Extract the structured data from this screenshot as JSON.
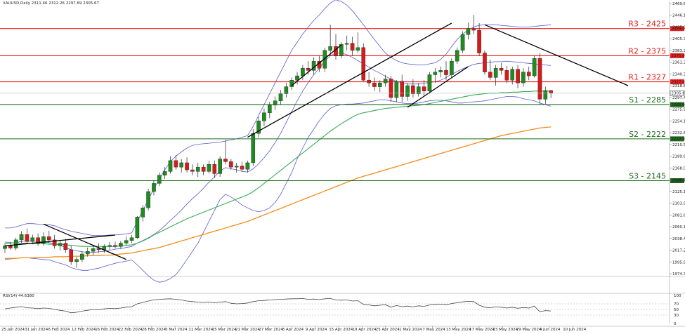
{
  "chart_data": {
    "type": "candlestick",
    "header": "XAUUSD,Daily  2311.46 2312.26 2297.69 2305.67",
    "symbol": "XAUUSD",
    "timeframe": "Daily",
    "ohlc_header": {
      "open": 2311.46,
      "high": 2312.26,
      "low": 2297.69,
      "close": 2305.67
    },
    "current_price_label": "2305.67",
    "price_ticks": [
      "2469.65",
      "2446.10",
      "2425.00",
      "2405.35",
      "2383.20",
      "2361.35",
      "2340.35",
      "2318.85",
      "2297.40",
      "2275.95",
      "2254.15",
      "2232.60",
      "2210.55",
      "2189.60",
      "2168.00",
      "2146.65",
      "2125.15",
      "2103.90",
      "2081.60",
      "2060.15",
      "2038.40",
      "2017.25",
      "1995.80",
      "1974.35"
    ],
    "date_ticks": [
      "25 Jan 2024",
      "31 Jan 2024",
      "6 Feb 2024",
      "12 Feb 2024",
      "16 Feb 2024",
      "22 Feb 2024",
      "28 Feb 2024",
      "5 Mar 2024",
      "11 Mar 2024",
      "15 Mar 2024",
      "21 Mar 2024",
      "27 Mar 2024",
      "3 Apr 2024",
      "9 Apr 2024",
      "15 Apr 2024",
      "19 Apr 2024",
      "25 Apr 2024",
      "1 May 2024",
      "7 May 2024",
      "13 May 2024",
      "17 May 2024",
      "23 May 2024",
      "29 May 2024",
      "4 Jun 2024",
      "10 Jun 2024"
    ],
    "levels": [
      {
        "label": "R3 - 2425",
        "axis_label": "2425.00",
        "value": 2425,
        "kind": "resistance"
      },
      {
        "label": "R2 - 2375",
        "axis_label": "2375.00",
        "value": 2375,
        "kind": "resistance"
      },
      {
        "label": "R1 - 2327",
        "axis_label": "2327.00",
        "value": 2327,
        "kind": "resistance"
      },
      {
        "label": "S1 - 2285",
        "axis_label": "2285.00",
        "value": 2285,
        "kind": "support"
      },
      {
        "label": "S2 - 2222",
        "axis_label": "2222.00",
        "value": 2222,
        "kind": "support"
      },
      {
        "label": "S3 - 2145",
        "axis_label": "2145.00",
        "value": 2145,
        "kind": "support"
      }
    ],
    "colors": {
      "resistance": "#e8211f",
      "support": "#1d6b1d",
      "bull_candle": "#1e8c1e",
      "bear_candle": "#d91a1a",
      "bollinger": "#5a5ad0",
      "ma_50": "#3aaa55",
      "ma_200": "#f28c1a",
      "rsi": "#444444",
      "trendline": "#000000"
    },
    "ohlc": [
      [
        2020,
        2030,
        2012,
        2025
      ],
      [
        2025,
        2032,
        2018,
        2021
      ],
      [
        2021,
        2040,
        2017,
        2036
      ],
      [
        2036,
        2052,
        2030,
        2046
      ],
      [
        2046,
        2057,
        2030,
        2033
      ],
      [
        2033,
        2046,
        2028,
        2040
      ],
      [
        2040,
        2048,
        2025,
        2030
      ],
      [
        2030,
        2050,
        2025,
        2042
      ],
      [
        2042,
        2053,
        2030,
        2036
      ],
      [
        2036,
        2045,
        2020,
        2025
      ],
      [
        2025,
        2034,
        2016,
        2030
      ],
      [
        2030,
        2038,
        2012,
        2018
      ],
      [
        2018,
        2025,
        1990,
        1996
      ],
      [
        1996,
        2005,
        1985,
        2000
      ],
      [
        2000,
        2015,
        1995,
        2010
      ],
      [
        2010,
        2022,
        2005,
        2015
      ],
      [
        2015,
        2025,
        2008,
        2020
      ],
      [
        2020,
        2030,
        2012,
        2018
      ],
      [
        2018,
        2028,
        2012,
        2024
      ],
      [
        2024,
        2032,
        2018,
        2026
      ],
      [
        2026,
        2033,
        2020,
        2024
      ],
      [
        2024,
        2034,
        2020,
        2030
      ],
      [
        2030,
        2042,
        2025,
        2035
      ],
      [
        2035,
        2045,
        2030,
        2040
      ],
      [
        2040,
        2080,
        2038,
        2078
      ],
      [
        2078,
        2100,
        2070,
        2095
      ],
      [
        2095,
        2130,
        2090,
        2125
      ],
      [
        2125,
        2145,
        2118,
        2140
      ],
      [
        2140,
        2160,
        2135,
        2155
      ],
      [
        2155,
        2170,
        2148,
        2162
      ],
      [
        2162,
        2190,
        2158,
        2182
      ],
      [
        2182,
        2192,
        2165,
        2170
      ],
      [
        2170,
        2185,
        2160,
        2178
      ],
      [
        2178,
        2188,
        2160,
        2165
      ],
      [
        2165,
        2175,
        2155,
        2162
      ],
      [
        2162,
        2178,
        2152,
        2170
      ],
      [
        2170,
        2175,
        2155,
        2162
      ],
      [
        2162,
        2182,
        2158,
        2175
      ],
      [
        2175,
        2182,
        2150,
        2158
      ],
      [
        2158,
        2190,
        2152,
        2185
      ],
      [
        2185,
        2220,
        2175,
        2180
      ],
      [
        2180,
        2185,
        2165,
        2170
      ],
      [
        2170,
        2178,
        2160,
        2172
      ],
      [
        2172,
        2180,
        2163,
        2166
      ],
      [
        2166,
        2182,
        2160,
        2178
      ],
      [
        2178,
        2240,
        2172,
        2232
      ],
      [
        2232,
        2262,
        2225,
        2255
      ],
      [
        2255,
        2278,
        2245,
        2270
      ],
      [
        2270,
        2290,
        2260,
        2284
      ],
      [
        2284,
        2300,
        2275,
        2292
      ],
      [
        2292,
        2312,
        2285,
        2305
      ],
      [
        2305,
        2325,
        2298,
        2318
      ],
      [
        2318,
        2335,
        2312,
        2330
      ],
      [
        2330,
        2345,
        2322,
        2338
      ],
      [
        2338,
        2358,
        2330,
        2352
      ],
      [
        2352,
        2365,
        2340,
        2348
      ],
      [
        2348,
        2372,
        2340,
        2365
      ],
      [
        2365,
        2375,
        2345,
        2352
      ],
      [
        2352,
        2390,
        2345,
        2385
      ],
      [
        2385,
        2432,
        2375,
        2392
      ],
      [
        2392,
        2415,
        2368,
        2375
      ],
      [
        2375,
        2400,
        2370,
        2396
      ],
      [
        2396,
        2412,
        2385,
        2398
      ],
      [
        2398,
        2410,
        2375,
        2385
      ],
      [
        2385,
        2418,
        2380,
        2390
      ],
      [
        2390,
        2398,
        2328,
        2330
      ],
      [
        2330,
        2345,
        2318,
        2325
      ],
      [
        2325,
        2335,
        2310,
        2318
      ],
      [
        2318,
        2330,
        2308,
        2325
      ],
      [
        2325,
        2340,
        2318,
        2332
      ],
      [
        2332,
        2338,
        2290,
        2298
      ],
      [
        2298,
        2330,
        2290,
        2328
      ],
      [
        2328,
        2340,
        2290,
        2300
      ],
      [
        2300,
        2325,
        2292,
        2320
      ],
      [
        2320,
        2332,
        2298,
        2305
      ],
      [
        2305,
        2325,
        2300,
        2318
      ],
      [
        2318,
        2330,
        2302,
        2310
      ],
      [
        2310,
        2345,
        2305,
        2340
      ],
      [
        2340,
        2352,
        2325,
        2345
      ],
      [
        2345,
        2355,
        2335,
        2348
      ],
      [
        2348,
        2365,
        2330,
        2340
      ],
      [
        2340,
        2370,
        2335,
        2365
      ],
      [
        2365,
        2390,
        2360,
        2385
      ],
      [
        2385,
        2420,
        2380,
        2414
      ],
      [
        2414,
        2436,
        2405,
        2425
      ],
      [
        2425,
        2450,
        2415,
        2422
      ],
      [
        2422,
        2435,
        2375,
        2380
      ],
      [
        2380,
        2385,
        2340,
        2345
      ],
      [
        2345,
        2368,
        2330,
        2335
      ],
      [
        2335,
        2358,
        2320,
        2352
      ],
      [
        2352,
        2362,
        2340,
        2348
      ],
      [
        2348,
        2356,
        2325,
        2330
      ],
      [
        2330,
        2355,
        2322,
        2350
      ],
      [
        2350,
        2358,
        2315,
        2325
      ],
      [
        2325,
        2352,
        2318,
        2345
      ],
      [
        2345,
        2355,
        2330,
        2338
      ],
      [
        2338,
        2375,
        2335,
        2370
      ],
      [
        2370,
        2380,
        2285,
        2295
      ],
      [
        2295,
        2318,
        2286,
        2311
      ],
      [
        2311,
        2312,
        2297,
        2306
      ]
    ],
    "ma_50": [
      2032,
      2031,
      2030,
      2030,
      2030,
      2029,
      2029,
      2029,
      2028,
      2028,
      2028,
      2027,
      2026,
      2025,
      2024,
      2024,
      2024,
      2024,
      2024,
      2024,
      2024,
      2025,
      2026,
      2027,
      2030,
      2034,
      2039,
      2045,
      2050,
      2055,
      2060,
      2065,
      2070,
      2075,
      2079,
      2083,
      2087,
      2091,
      2095,
      2099,
      2103,
      2107,
      2111,
      2115,
      2119,
      2125,
      2132,
      2140,
      2148,
      2156,
      2164,
      2172,
      2180,
      2188,
      2196,
      2204,
      2212,
      2220,
      2228,
      2236,
      2243,
      2250,
      2256,
      2262,
      2267,
      2270,
      2272,
      2274,
      2276,
      2278,
      2279,
      2280,
      2281,
      2282,
      2283,
      2284,
      2285,
      2287,
      2289,
      2291,
      2293,
      2295,
      2297,
      2299,
      2301,
      2303,
      2304,
      2305,
      2306,
      2306,
      2307,
      2307,
      2308,
      2308,
      2309,
      2309,
      2310,
      2310,
      2310,
      2310
    ],
    "ma_200": [
      2002,
      2002,
      2002,
      2003,
      2003,
      2003,
      2004,
      2004,
      2004,
      2005,
      2005,
      2005,
      2006,
      2006,
      2006,
      2007,
      2007,
      2007,
      2008,
      2008,
      2009,
      2010,
      2011,
      2012,
      2014,
      2016,
      2018,
      2020,
      2022,
      2025,
      2028,
      2031,
      2034,
      2037,
      2040,
      2043,
      2046,
      2049,
      2052,
      2055,
      2058,
      2061,
      2064,
      2067,
      2070,
      2074,
      2078,
      2082,
      2086,
      2090,
      2094,
      2098,
      2102,
      2106,
      2110,
      2114,
      2118,
      2122,
      2126,
      2130,
      2134,
      2138,
      2142,
      2146,
      2150,
      2153,
      2156,
      2159,
      2162,
      2165,
      2168,
      2171,
      2174,
      2177,
      2180,
      2183,
      2186,
      2189,
      2192,
      2195,
      2198,
      2201,
      2204,
      2207,
      2210,
      2213,
      2216,
      2219,
      2222,
      2225,
      2228,
      2230,
      2232,
      2234,
      2236,
      2238,
      2240,
      2242,
      2243,
      2244
    ],
    "bb_upper": [
      2058,
      2058,
      2060,
      2063,
      2066,
      2066,
      2065,
      2065,
      2064,
      2062,
      2058,
      2055,
      2052,
      2050,
      2048,
      2046,
      2044,
      2044,
      2044,
      2045,
      2045,
      2046,
      2047,
      2049,
      2070,
      2090,
      2110,
      2130,
      2148,
      2165,
      2180,
      2190,
      2198,
      2205,
      2210,
      2212,
      2213,
      2214,
      2215,
      2216,
      2218,
      2220,
      2222,
      2225,
      2228,
      2245,
      2265,
      2285,
      2305,
      2325,
      2345,
      2365,
      2385,
      2400,
      2415,
      2428,
      2440,
      2450,
      2462,
      2472,
      2478,
      2475,
      2468,
      2458,
      2445,
      2432,
      2418,
      2405,
      2392,
      2380,
      2372,
      2366,
      2362,
      2360,
      2359,
      2358,
      2358,
      2360,
      2362,
      2368,
      2378,
      2392,
      2405,
      2415,
      2422,
      2428,
      2431,
      2432,
      2432,
      2432,
      2431,
      2430,
      2429,
      2428,
      2428,
      2428,
      2429,
      2430,
      2431,
      2432
    ],
    "bb_lower": [
      2000,
      2001,
      2002,
      2003,
      2003,
      2002,
      2001,
      2000,
      1999,
      1996,
      1993,
      1990,
      1985,
      1982,
      1980,
      1980,
      1982,
      1984,
      1987,
      1990,
      1993,
      1995,
      1997,
      1999,
      1990,
      1980,
      1970,
      1962,
      1958,
      1960,
      1965,
      1972,
      1985,
      2000,
      2015,
      2030,
      2050,
      2070,
      2090,
      2110,
      2120,
      2115,
      2108,
      2100,
      2095,
      2090,
      2088,
      2090,
      2095,
      2105,
      2120,
      2140,
      2160,
      2185,
      2205,
      2225,
      2240,
      2255,
      2268,
      2278,
      2283,
      2285,
      2286,
      2286,
      2287,
      2288,
      2290,
      2292,
      2294,
      2294,
      2292,
      2290,
      2288,
      2287,
      2287,
      2288,
      2290,
      2292,
      2293,
      2293,
      2292,
      2290,
      2288,
      2288,
      2289,
      2290,
      2291,
      2292,
      2294,
      2296,
      2298,
      2300,
      2300,
      2299,
      2296,
      2294,
      2292,
      2288,
      2285,
      2282
    ],
    "bb_middle": [
      2029,
      2030,
      2031,
      2033,
      2034,
      2034,
      2033,
      2032,
      2031,
      2029,
      2026,
      2022,
      2018,
      2016,
      2014,
      2013,
      2013,
      2014,
      2015,
      2017,
      2019,
      2020,
      2022,
      2024,
      2030,
      2035,
      2040,
      2046,
      2053,
      2062,
      2072,
      2081,
      2091,
      2102,
      2112,
      2121,
      2131,
      2142,
      2152,
      2163,
      2169,
      2167,
      2165,
      2162,
      2161,
      2167,
      2176,
      2187,
      2200,
      2215,
      2232,
      2252,
      2272,
      2292,
      2310,
      2326,
      2340,
      2352,
      2365,
      2375,
      2380,
      2380,
      2377,
      2372,
      2366,
      2360,
      2354,
      2348,
      2343,
      2337,
      2332,
      2328,
      2325,
      2323,
      2323,
      2323,
      2324,
      2326,
      2327,
      2330,
      2335,
      2341,
      2346,
      2351,
      2355,
      2359,
      2361,
      2362,
      2363,
      2364,
      2364,
      2365,
      2364,
      2363,
      2362,
      2361,
      2360,
      2359,
      2358,
      2357
    ],
    "rsi_header": "RSI(14) 44.6380",
    "rsi_value": 44.638,
    "rsi_ticks": [
      "100",
      "70",
      "50",
      "30",
      "0"
    ],
    "rsi": [
      52,
      55,
      58,
      60,
      56,
      55,
      53,
      55,
      54,
      50,
      47,
      44,
      38,
      40,
      44,
      47,
      50,
      49,
      52,
      54,
      53,
      55,
      58,
      60,
      70,
      75,
      80,
      84,
      86,
      87,
      88,
      86,
      84,
      80,
      78,
      76,
      75,
      76,
      74,
      76,
      78,
      72,
      70,
      71,
      73,
      78,
      81,
      82,
      84,
      85,
      86,
      87,
      88,
      88,
      89,
      86,
      87,
      85,
      88,
      89,
      84,
      83,
      84,
      80,
      81,
      68,
      66,
      63,
      65,
      67,
      58,
      64,
      60,
      62,
      59,
      63,
      61,
      66,
      68,
      69,
      67,
      71,
      74,
      77,
      79,
      78,
      65,
      58,
      56,
      59,
      58,
      55,
      58,
      54,
      57,
      55,
      62,
      42,
      46,
      44.6
    ],
    "trendlines": [
      {
        "from": {
          "i": 0,
          "price": 2025
        },
        "to": {
          "i": 20,
          "price": 2045
        }
      },
      {
        "from": {
          "i": 7,
          "price": 2065
        },
        "to": {
          "i": 22,
          "price": 2000
        }
      },
      {
        "from": {
          "i": 44,
          "price": 2225
        },
        "to": {
          "i": 81,
          "price": 2435
        }
      },
      {
        "from": {
          "i": 52,
          "price": 2320
        },
        "to": {
          "i": 61,
          "price": 2395
        }
      },
      {
        "from": {
          "i": 73,
          "price": 2280
        },
        "to": {
          "i": 84,
          "price": 2355
        }
      },
      {
        "from": {
          "i": 87,
          "price": 2432
        },
        "to": {
          "i": 113,
          "price": 2320
        }
      }
    ]
  }
}
